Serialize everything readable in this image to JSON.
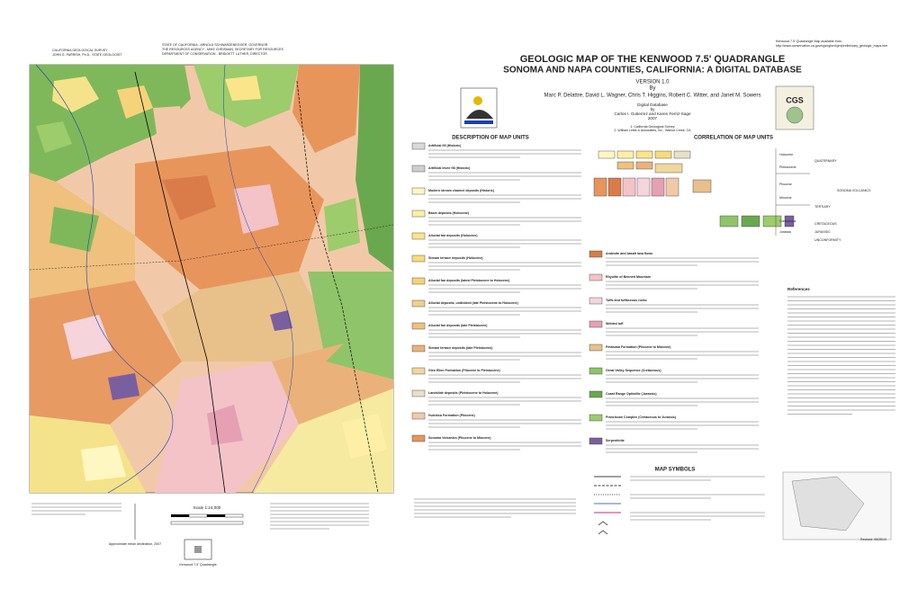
{
  "header": {
    "agency_left": [
      "CALIFORNIA GEOLOGICAL SURVEY",
      "JOHN G. PARRISH, Ph.D., STATE GEOLOGIST"
    ],
    "agency_center": [
      "STATE OF CALIFORNIA - ARNOLD SCHWARZENEGGER, GOVERNOR",
      "THE RESOURCES AGENCY - MIKE CHRISMAN, SECRETARY FOR RESOURCES",
      "DEPARTMENT OF CONSERVATION - BRIDGETT LUTHER, DIRECTOR"
    ],
    "availability": [
      "Kenwood 7.5' Quadrangle Map available from:",
      "http://www.conservation.ca.gov/cgs/rghm/rgm/preliminary_geologic_maps.htm"
    ]
  },
  "title": {
    "line1": "GEOLOGIC MAP OF THE KENWOOD 7.5' QUADRANGLE",
    "line2": "SONOMA AND NAPA COUNTIES, CALIFORNIA: A DIGITAL DATABASE",
    "version": "VERSION 1.0",
    "by": "By",
    "authors": "Marc P. Delattre, David L. Wagner, Chris T. Higgins, Robert C. Witter, and Janet M. Sowers",
    "digital": [
      "Digital Database",
      "by",
      "Carlos I. Gutierrez and Karen Ferriz-Sage",
      "2007"
    ],
    "affiliation": [
      "1. California Geological Survey",
      "2. William Lettis & Associates, Inc., Walnut Creek, CA"
    ]
  },
  "sections": {
    "description": "DESCRIPTION OF MAP UNITS",
    "correlation": "CORRELATION OF MAP UNITS",
    "symbols": "MAP SYMBOLS",
    "references": "References"
  },
  "units": [
    {
      "label": "Artificial fill (Historic)",
      "color": "#d9d9d9"
    },
    {
      "label": "Artificial levee fill (Historic)",
      "color": "#cfcfcf"
    },
    {
      "label": "Modern stream channel deposits (Historic)",
      "color": "#fff7c2"
    },
    {
      "label": "Basin deposits (Holocene)",
      "color": "#fdf0a6"
    },
    {
      "label": "Alluvial fan deposits (Holocene)",
      "color": "#fbe58a"
    },
    {
      "label": "Stream terrace deposits (Holocene)",
      "color": "#f7dc7e"
    },
    {
      "label": "Alluvial fan deposits (latest Pleistocene to Holocene)",
      "color": "#f6d37a"
    },
    {
      "label": "Alluvial deposits, undivided (late Pleistocene to Holocene)",
      "color": "#f3cf8c"
    },
    {
      "label": "Alluvial fan deposits (late Pleistocene)",
      "color": "#efc07e"
    },
    {
      "label": "Stream terrace deposits (late Pleistocene)",
      "color": "#eab27a"
    },
    {
      "label": "Glen Ellen Formation (Pliocene to Pleistocene)",
      "color": "#f0d7a0"
    },
    {
      "label": "Landslide deposits (Pleistocene to Holocene)",
      "color": "#e8e0c8"
    },
    {
      "label": "Huichica Formation (Pliocene)",
      "color": "#f2c9a8"
    },
    {
      "label": "Sonoma Volcanics (Pliocene to Miocene)",
      "color": "#e8955c"
    },
    {
      "label": "Andesite and basalt lava flows",
      "color": "#d97c4a"
    },
    {
      "label": "Rhyolite of Bennett Mountain",
      "color": "#f3c3c8"
    },
    {
      "label": "Tuffs and tuffaceous rocks",
      "color": "#f6d4dc"
    },
    {
      "label": "Welded tuff",
      "color": "#e6a0b4"
    },
    {
      "label": "Petaluma Formation (Pliocene to Miocene)",
      "color": "#e8c08a"
    },
    {
      "label": "Great Valley Sequence (Cretaceous)",
      "color": "#8fc46a"
    },
    {
      "label": "Coast Range Ophiolite (Jurassic)",
      "color": "#6aa84f"
    },
    {
      "label": "Franciscan Complex (Cretaceous to Jurassic)",
      "color": "#9ccc6b"
    },
    {
      "label": "Serpentinite",
      "color": "#7a5fa0"
    }
  ],
  "correlation": {
    "epochs": [
      "Holocene",
      "Pleistocene",
      "Pliocene",
      "Miocene",
      "Cretaceous",
      "Jurassic"
    ],
    "periods": [
      "QUATERNARY",
      "TERTIARY",
      "CRETACEOUS",
      "JURASSIC"
    ],
    "other": [
      "SONOMA VOLCANICS",
      "UNCONFORMITY"
    ]
  },
  "scale": {
    "label": "Scale 1:24,000",
    "declination": "Approximate mean declination, 2007"
  },
  "footer": {
    "revised": "Revised: 05/25/10",
    "location": "Kenwood 7.5' Quadrangle"
  }
}
